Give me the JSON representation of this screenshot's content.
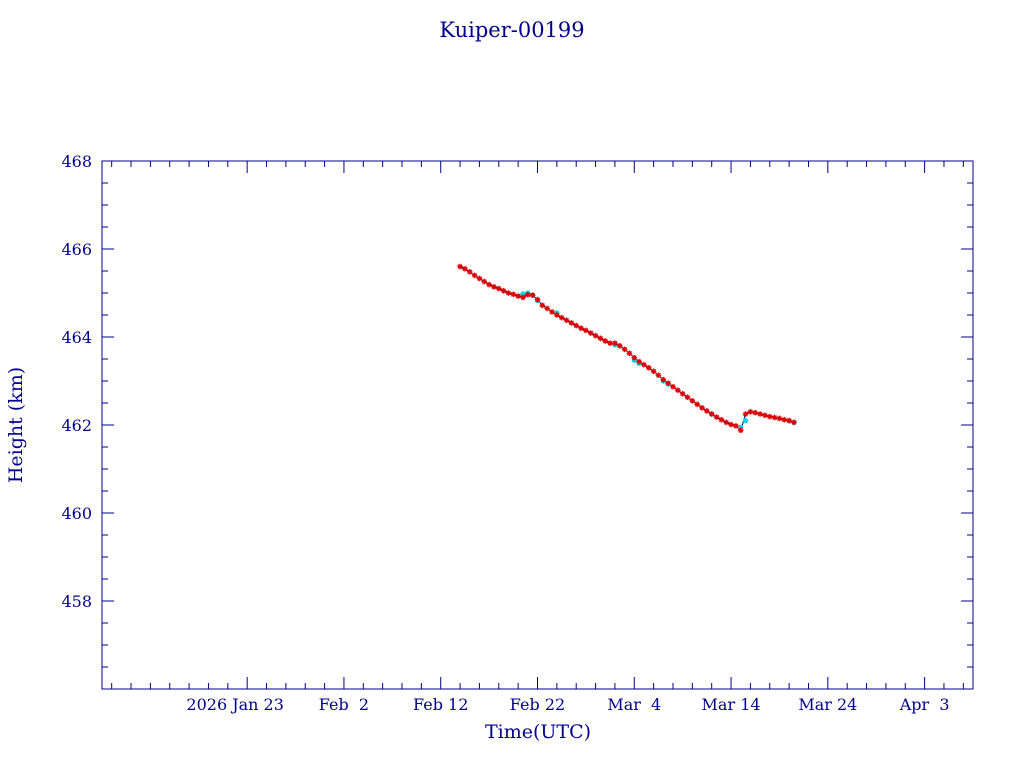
{
  "chart_data": {
    "type": "scatter",
    "title": "Kuiper-00199",
    "xlabel": "Time(UTC)",
    "ylabel": "Height (km)",
    "xlim": [
      "2026-01-08",
      "2026-04-08"
    ],
    "ylim": [
      456,
      468
    ],
    "x_tick_labels": [
      {
        "date": "2026-01-23",
        "label": "2026 Jan 23"
      },
      {
        "date": "2026-02-02",
        "label": "Feb  2"
      },
      {
        "date": "2026-02-12",
        "label": "Feb 12"
      },
      {
        "date": "2026-02-22",
        "label": "Feb 22"
      },
      {
        "date": "2026-03-04",
        "label": "Mar  4"
      },
      {
        "date": "2026-03-14",
        "label": "Mar 14"
      },
      {
        "date": "2026-03-24",
        "label": "Mar 24"
      },
      {
        "date": "2026-04-03",
        "label": "Apr  3"
      }
    ],
    "y_ticks": [
      458,
      460,
      462,
      464,
      466,
      468
    ],
    "grid": false,
    "colors": {
      "axes": "#00008b",
      "series_primary": "#e00000",
      "series_secondary": "#00d8e8",
      "line": "#00008b"
    },
    "series": [
      {
        "marker": "star",
        "color": "#e00000",
        "points": [
          [
            "2026-02-14 00:00",
            465.6
          ],
          [
            "2026-02-14 12:00",
            465.55
          ],
          [
            "2026-02-15 00:00",
            465.48
          ],
          [
            "2026-02-15 12:00",
            465.4
          ],
          [
            "2026-02-16 00:00",
            465.33
          ],
          [
            "2026-02-16 12:00",
            465.26
          ],
          [
            "2026-02-17 00:00",
            465.19
          ],
          [
            "2026-02-17 12:00",
            465.14
          ],
          [
            "2026-02-18 00:00",
            465.1
          ],
          [
            "2026-02-18 12:00",
            465.05
          ],
          [
            "2026-02-19 00:00",
            465.0
          ],
          [
            "2026-02-19 12:00",
            464.97
          ],
          [
            "2026-02-20 00:00",
            464.93
          ],
          [
            "2026-02-20 12:00",
            464.9
          ],
          [
            "2026-02-21 00:00",
            464.96
          ],
          [
            "2026-02-21 12:00",
            464.95
          ],
          [
            "2026-02-22 00:00",
            464.85
          ],
          [
            "2026-02-22 12:00",
            464.72
          ],
          [
            "2026-02-23 00:00",
            464.65
          ],
          [
            "2026-02-23 12:00",
            464.57
          ],
          [
            "2026-02-24 00:00",
            464.5
          ],
          [
            "2026-02-24 12:00",
            464.44
          ],
          [
            "2026-02-25 00:00",
            464.38
          ],
          [
            "2026-02-25 12:00",
            464.32
          ],
          [
            "2026-02-26 00:00",
            464.26
          ],
          [
            "2026-02-26 12:00",
            464.2
          ],
          [
            "2026-02-27 00:00",
            464.15
          ],
          [
            "2026-02-27 12:00",
            464.09
          ],
          [
            "2026-02-28 00:00",
            464.03
          ],
          [
            "2026-02-28 12:00",
            463.97
          ],
          [
            "2026-03-01 00:00",
            463.91
          ],
          [
            "2026-03-01 12:00",
            463.86
          ],
          [
            "2026-03-02 00:00",
            463.86
          ],
          [
            "2026-03-02 12:00",
            463.8
          ],
          [
            "2026-03-03 00:00",
            463.72
          ],
          [
            "2026-03-03 12:00",
            463.63
          ],
          [
            "2026-03-04 00:00",
            463.53
          ],
          [
            "2026-03-04 12:00",
            463.44
          ],
          [
            "2026-03-05 00:00",
            463.37
          ],
          [
            "2026-03-05 12:00",
            463.3
          ],
          [
            "2026-03-06 00:00",
            463.22
          ],
          [
            "2026-03-06 12:00",
            463.13
          ],
          [
            "2026-03-07 00:00",
            463.03
          ],
          [
            "2026-03-07 12:00",
            462.95
          ],
          [
            "2026-03-08 00:00",
            462.87
          ],
          [
            "2026-03-08 12:00",
            462.79
          ],
          [
            "2026-03-09 00:00",
            462.71
          ],
          [
            "2026-03-09 12:00",
            462.63
          ],
          [
            "2026-03-10 00:00",
            462.55
          ],
          [
            "2026-03-10 12:00",
            462.47
          ],
          [
            "2026-03-11 00:00",
            462.39
          ],
          [
            "2026-03-11 12:00",
            462.32
          ],
          [
            "2026-03-12 00:00",
            462.25
          ],
          [
            "2026-03-12 12:00",
            462.18
          ],
          [
            "2026-03-13 00:00",
            462.12
          ],
          [
            "2026-03-13 12:00",
            462.06
          ],
          [
            "2026-03-14 00:00",
            462.01
          ],
          [
            "2026-03-14 12:00",
            461.98
          ],
          [
            "2026-03-15 00:00",
            461.88
          ],
          [
            "2026-03-15 12:00",
            462.25
          ],
          [
            "2026-03-16 00:00",
            462.3
          ],
          [
            "2026-03-16 12:00",
            462.28
          ],
          [
            "2026-03-17 00:00",
            462.25
          ],
          [
            "2026-03-17 12:00",
            462.22
          ],
          [
            "2026-03-18 00:00",
            462.19
          ],
          [
            "2026-03-18 12:00",
            462.17
          ],
          [
            "2026-03-19 00:00",
            462.15
          ],
          [
            "2026-03-19 12:00",
            462.12
          ],
          [
            "2026-03-20 00:00",
            462.1
          ],
          [
            "2026-03-20 12:00",
            462.06
          ]
        ]
      },
      {
        "marker": "dot",
        "color": "#00d8e8",
        "points": [
          [
            "2026-02-20 12:00",
            464.98
          ],
          [
            "2026-02-21 00:00",
            465.0
          ],
          [
            "2026-02-21 12:00",
            464.95
          ],
          [
            "2026-02-22 00:00",
            464.83
          ],
          [
            "2026-02-24 00:00",
            464.55
          ],
          [
            "2026-03-02 00:00",
            463.82
          ],
          [
            "2026-03-04 00:00",
            463.47
          ],
          [
            "2026-03-04 12:00",
            463.4
          ],
          [
            "2026-03-07 00:00",
            463.0
          ],
          [
            "2026-03-07 12:00",
            462.93
          ],
          [
            "2026-03-12 00:00",
            462.25
          ],
          [
            "2026-03-15 00:00",
            461.95
          ],
          [
            "2026-03-15 12:00",
            462.1
          ],
          [
            "2026-03-20 00:00",
            462.09
          ],
          [
            "2026-03-20 12:00",
            462.06
          ]
        ]
      }
    ]
  }
}
